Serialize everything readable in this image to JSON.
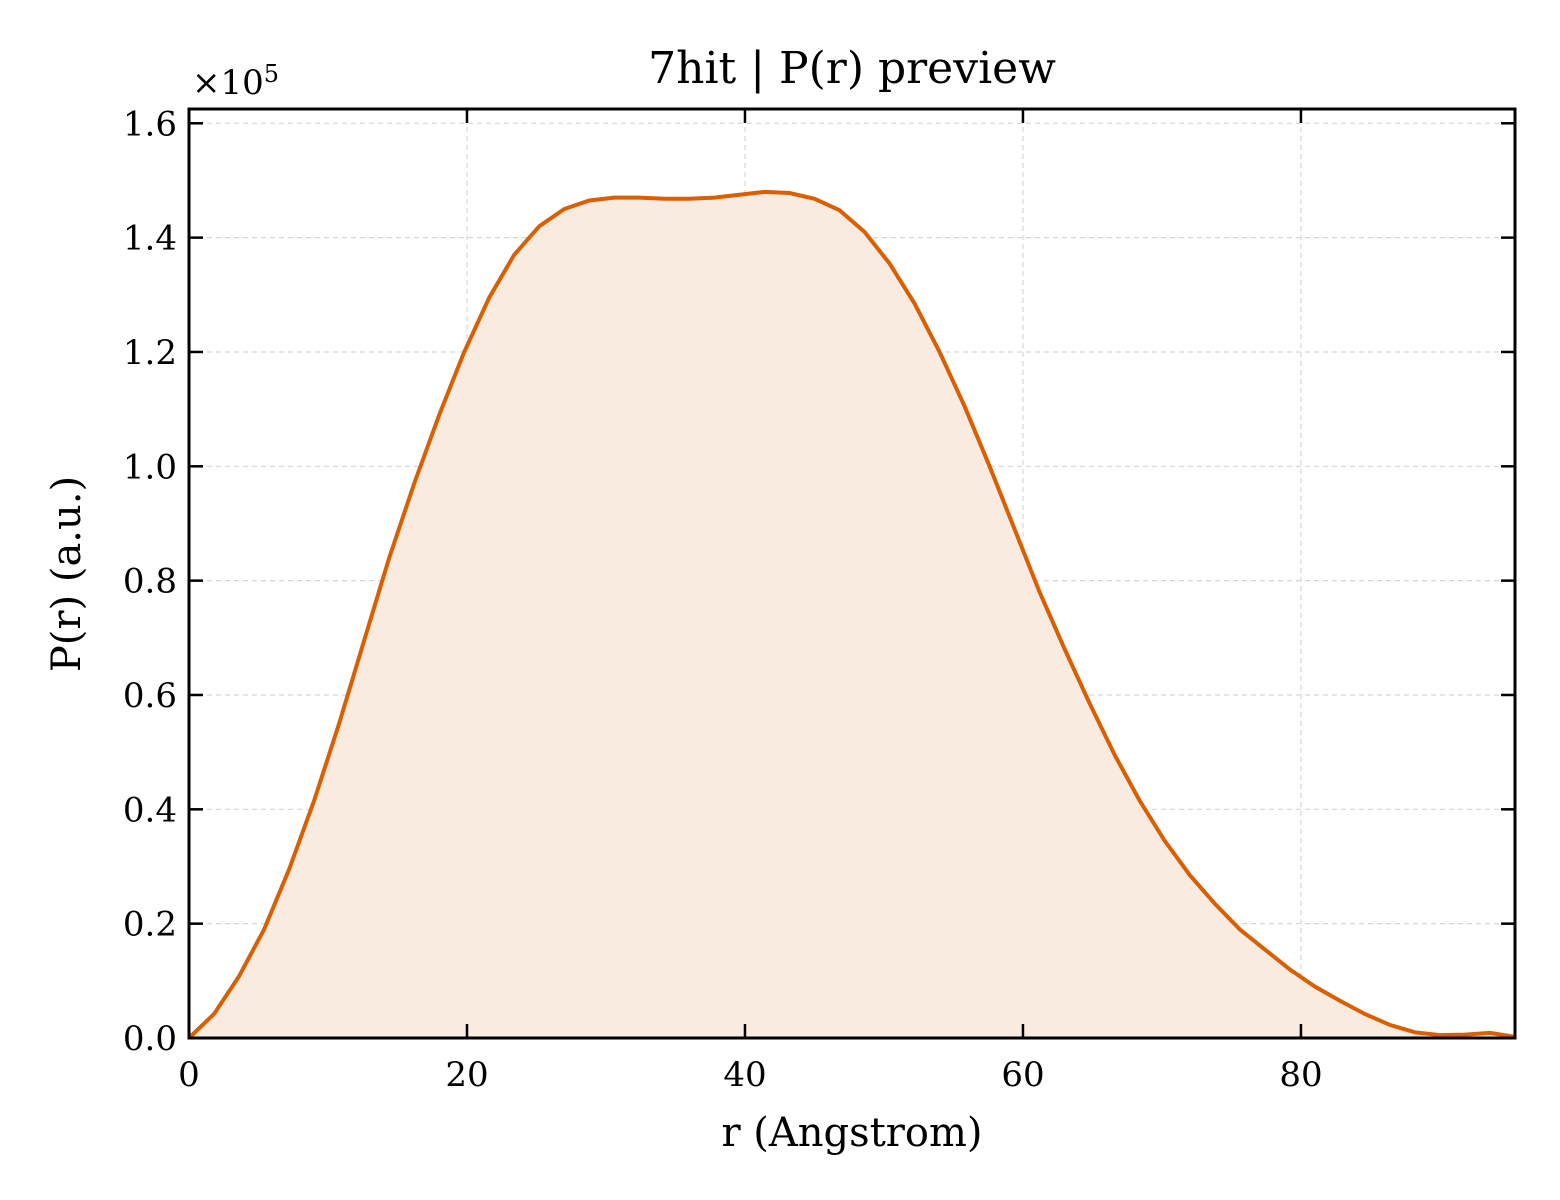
{
  "chart_data": {
    "type": "area",
    "title": "7hit | P(r) preview",
    "xlabel": "r (Angstrom)",
    "ylabel": "P(r) (a.u.)",
    "y_offset_text": "×10",
    "y_offset_exponent": "5",
    "y_scale": 100000,
    "xlim": [
      0,
      95.4
    ],
    "ylim": [
      0,
      162500
    ],
    "x_ticks": [
      0,
      20,
      40,
      60,
      80
    ],
    "x_tick_labels": [
      "0",
      "20",
      "40",
      "60",
      "80"
    ],
    "y_ticks": [
      0,
      20000,
      40000,
      60000,
      80000,
      100000,
      120000,
      140000,
      160000
    ],
    "y_tick_labels": [
      "0.0",
      "0.2",
      "0.4",
      "0.6",
      "0.8",
      "1.0",
      "1.2",
      "1.4",
      "1.6"
    ],
    "grid": true,
    "line_color": "#d95f02",
    "fill_color": "#f9ebe0",
    "series": [
      {
        "x": [
          0,
          1.8,
          3.6,
          5.4,
          7.2,
          9.0,
          10.8,
          12.6,
          14.4,
          16.2,
          18.0,
          19.8,
          21.6,
          23.4,
          25.2,
          27.0,
          28.8,
          30.6,
          32.4,
          34.2,
          36.0,
          37.8,
          39.6,
          41.4,
          43.2,
          45.0,
          46.8,
          48.6,
          50.4,
          52.2,
          54.0,
          55.8,
          57.6,
          59.4,
          61.2,
          63.0,
          64.8,
          66.6,
          68.4,
          70.2,
          72.0,
          73.8,
          75.6,
          77.4,
          79.2,
          81.0,
          82.8,
          84.6,
          86.4,
          88.2,
          90.0,
          91.8,
          93.6,
          95.4
        ],
        "y": [
          0,
          4200,
          10800,
          19000,
          29500,
          41500,
          55000,
          69500,
          84000,
          97000,
          109000,
          120000,
          129500,
          137000,
          142000,
          145000,
          146500,
          147000,
          147000,
          146800,
          146800,
          147000,
          147500,
          148000,
          147800,
          146800,
          144800,
          141000,
          135500,
          128500,
          120000,
          110500,
          100000,
          89000,
          78000,
          68000,
          58500,
          49500,
          41500,
          34500,
          28500,
          23500,
          19000,
          15500,
          12000,
          9000,
          6500,
          4200,
          2300,
          1000,
          500,
          600,
          900,
          200
        ]
      }
    ]
  }
}
